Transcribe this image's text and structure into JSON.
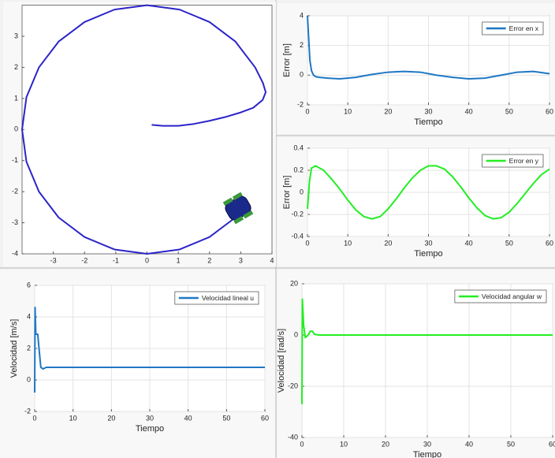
{
  "chart_data": [
    {
      "type": "line",
      "xlim": [
        -4,
        4
      ],
      "ylim": [
        -4,
        4
      ],
      "xticks": [
        -3,
        -2,
        -1,
        0,
        1,
        2,
        3,
        4
      ],
      "yticks": [
        -4,
        -3,
        -2,
        -1,
        0,
        1,
        2,
        3
      ],
      "grid": false,
      "x": [
        0.15,
        0.5,
        1,
        1.5,
        2,
        2.5,
        3,
        3.4,
        3.7,
        3.8,
        3.71,
        3.46,
        2.83,
        2,
        1.04,
        0,
        -1.04,
        -2,
        -2.83,
        -3.46,
        -3.86,
        -4,
        -3.86,
        -3.46,
        -2.83,
        -2,
        -1.04,
        0,
        1.04,
        2,
        2.83,
        3.06
      ],
      "series": [
        {
          "color": "#2b24c8",
          "values": [
            0.15,
            0.12,
            0.12,
            0.18,
            0.28,
            0.4,
            0.55,
            0.7,
            0.95,
            1.2,
            1.5,
            2,
            2.83,
            3.46,
            3.86,
            4,
            3.86,
            3.46,
            2.83,
            2,
            1.04,
            0,
            -1.04,
            -2,
            -2.83,
            -3.46,
            -3.86,
            -4,
            -3.86,
            -3.46,
            -2.83,
            -2.57
          ]
        }
      ]
    },
    {
      "type": "line",
      "xlim": [
        0,
        60
      ],
      "ylim": [
        -2,
        4
      ],
      "xticks": [
        0,
        10,
        20,
        30,
        40,
        50,
        60
      ],
      "yticks": [
        -2,
        0,
        2,
        4
      ],
      "grid": true,
      "legend": "upper right",
      "x_label": "Tiempo",
      "y_label": "Error  [m]",
      "x": [
        0,
        0.3,
        0.6,
        1,
        1.5,
        2,
        3,
        5,
        8,
        12,
        16,
        20,
        24,
        28,
        32,
        36,
        40,
        44,
        48,
        52,
        56,
        60
      ],
      "series": [
        {
          "name": "Error en x",
          "color": "#1f77c4",
          "values": [
            4,
            2.5,
            1,
            0.3,
            0,
            -0.1,
            -0.15,
            -0.2,
            -0.25,
            -0.15,
            0.05,
            0.2,
            0.25,
            0.2,
            0,
            -0.15,
            -0.25,
            -0.2,
            0,
            0.2,
            0.25,
            0.1
          ]
        }
      ]
    },
    {
      "type": "line",
      "xlim": [
        0,
        60
      ],
      "ylim": [
        -0.4,
        0.4
      ],
      "xticks": [
        0,
        10,
        20,
        30,
        40,
        50,
        60
      ],
      "yticks": [
        -0.4,
        -0.2,
        0,
        0.2,
        0.4
      ],
      "grid": true,
      "legend": "upper right",
      "x_label": "Tiempo",
      "y_label": "Error  [m]",
      "x": [
        0,
        0.5,
        1,
        2,
        4,
        6,
        8,
        10,
        12,
        14,
        16,
        18,
        20,
        22,
        24,
        26,
        28,
        30,
        32,
        34,
        36,
        38,
        40,
        42,
        44,
        46,
        48,
        50,
        52,
        54,
        56,
        58,
        60
      ],
      "series": [
        {
          "name": "Error en y",
          "color": "#22ee22",
          "values": [
            -0.15,
            0.1,
            0.22,
            0.24,
            0.2,
            0.12,
            0.03,
            -0.07,
            -0.16,
            -0.22,
            -0.24,
            -0.22,
            -0.15,
            -0.06,
            0.04,
            0.13,
            0.2,
            0.24,
            0.24,
            0.21,
            0.14,
            0.05,
            -0.05,
            -0.14,
            -0.21,
            -0.24,
            -0.23,
            -0.18,
            -0.1,
            -0.01,
            0.08,
            0.16,
            0.21
          ]
        }
      ]
    },
    {
      "type": "line",
      "xlim": [
        0,
        60
      ],
      "ylim": [
        -2,
        6
      ],
      "xticks": [
        0,
        10,
        20,
        30,
        40,
        50,
        60
      ],
      "yticks": [
        -2,
        0,
        2,
        4,
        6
      ],
      "grid": true,
      "legend": "upper right",
      "x_label": "Tiempo",
      "y_label": "Velocidad  [m/s]",
      "x": [
        0,
        0.1,
        0.3,
        0.8,
        1.2,
        1.6,
        2.2,
        3,
        60
      ],
      "series": [
        {
          "name": "Velocidad lineal u",
          "color": "#1f77c4",
          "values": [
            -0.8,
            4.6,
            2.9,
            2.9,
            1.8,
            0.8,
            0.7,
            0.8,
            0.8
          ]
        }
      ]
    },
    {
      "type": "line",
      "xlim": [
        0,
        60
      ],
      "ylim": [
        -40,
        20
      ],
      "xticks": [
        0,
        10,
        20,
        30,
        40,
        50,
        60
      ],
      "yticks": [
        -40,
        -20,
        0,
        20
      ],
      "grid": true,
      "legend": "upper right",
      "x_label": "Tiempo",
      "y_label": "Velocidad  [rad/s]",
      "x": [
        0,
        0.1,
        0.4,
        0.8,
        1.5,
        2,
        2.5,
        3,
        4,
        60
      ],
      "series": [
        {
          "name": "Velocidad angular w",
          "color": "#22ee22",
          "values": [
            -27,
            14,
            4,
            -1,
            0,
            1.5,
            1.5,
            0.3,
            0,
            0
          ]
        }
      ]
    }
  ]
}
